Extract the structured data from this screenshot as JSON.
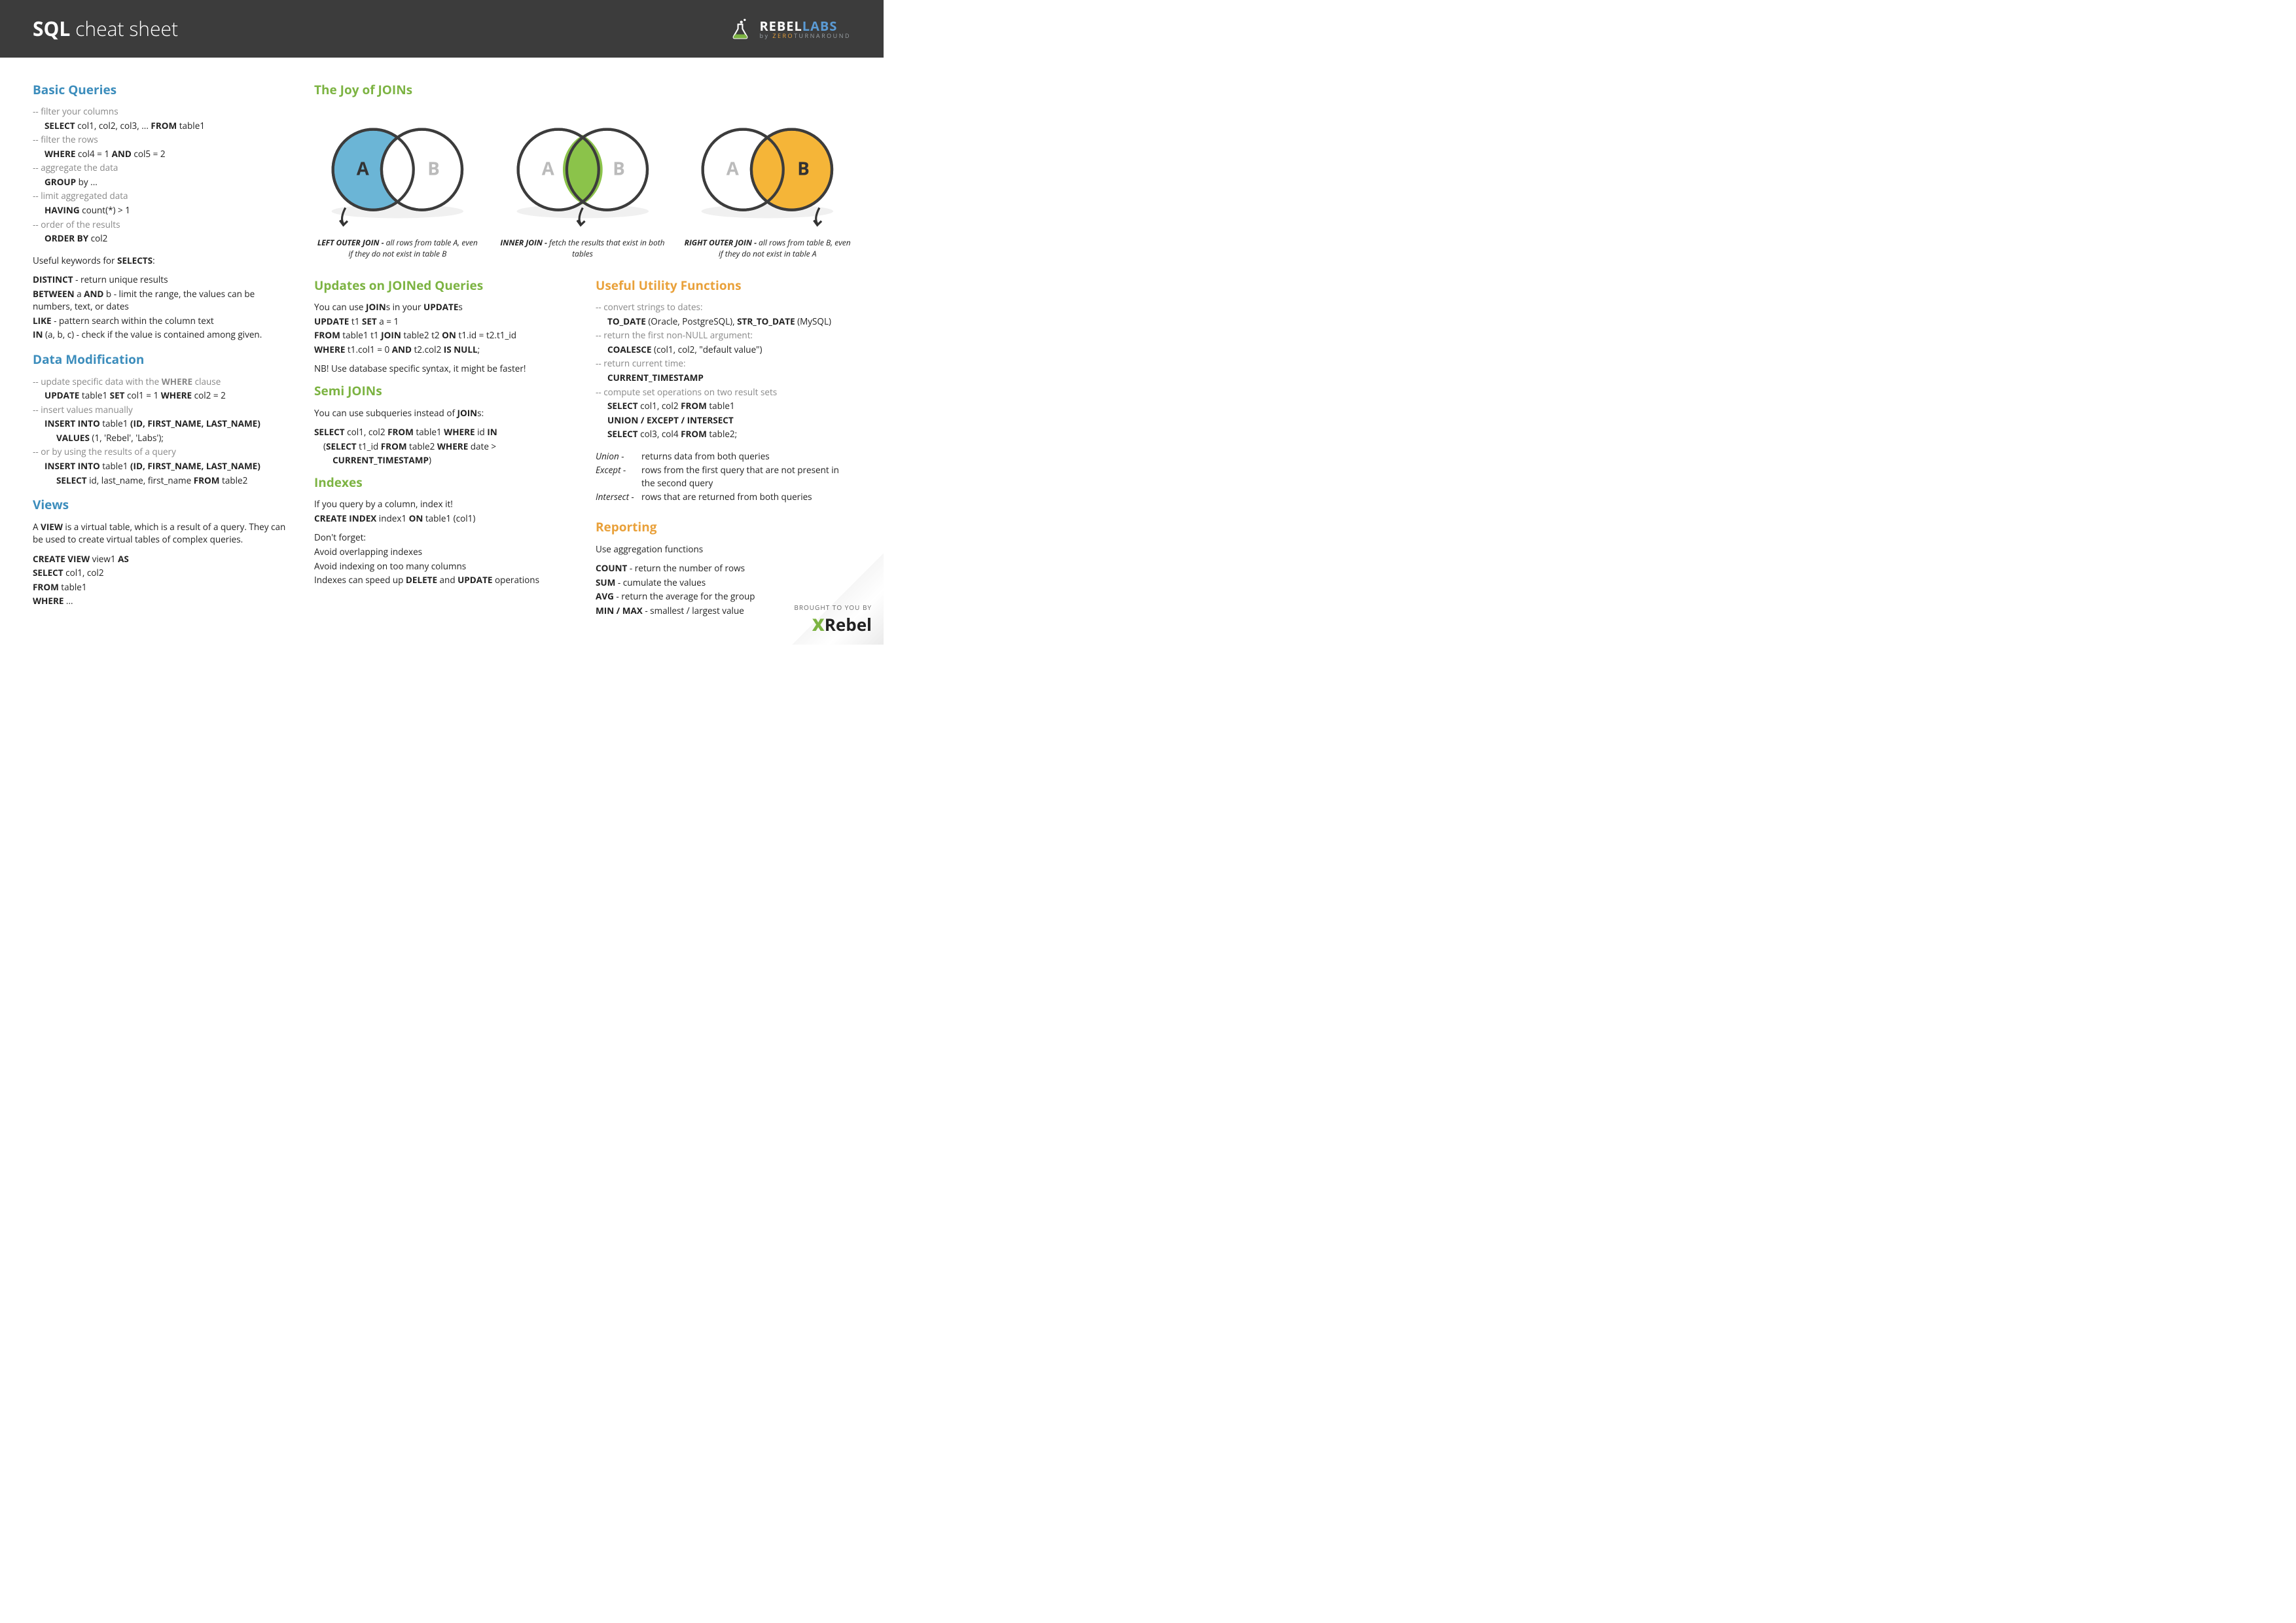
{
  "header": {
    "title_bold": "SQL",
    "title_light": "cheat sheet",
    "logo": {
      "main1": "REBEL",
      "main2": "LABS",
      "sub_pre": "by ",
      "sub_hi": "ZERO",
      "sub_post": "TURNAROUND"
    }
  },
  "colors": {
    "header_bg": "#3c3c3c",
    "blue": "#3c8dbc",
    "green": "#7cb342",
    "orange": "#e9a13b",
    "venn_left": "#6bb5d6",
    "venn_mid": "#8bc34a",
    "venn_right": "#f5b538",
    "venn_stroke": "#3c3c3c"
  },
  "basic": {
    "title": "Basic Queries",
    "items": [
      {
        "c": "--  filter your columns",
        "code": "SELECT col1, col2, col3, ... FROM table1",
        "code_bold": [
          "SELECT",
          "FROM"
        ]
      },
      {
        "c": "--  filter the rows",
        "code": "WHERE col4 = 1 AND col5 = 2",
        "code_bold": [
          "WHERE",
          "AND"
        ]
      },
      {
        "c": "--  aggregate the data",
        "code": "GROUP by ...",
        "code_bold": [
          "GROUP"
        ]
      },
      {
        "c": "--  limit aggregated data",
        "code": "HAVING count(*) > 1",
        "code_bold": [
          "HAVING"
        ]
      },
      {
        "c": "--  order of the results",
        "code": "ORDER BY col2",
        "code_bold": [
          "ORDER BY"
        ]
      }
    ],
    "useful_intro_pre": "Useful keywords for ",
    "useful_intro_bold": "SELECTS",
    "useful_intro_post": ":",
    "keywords": [
      {
        "k": "DISTINCT",
        "t": " - return unique results"
      },
      {
        "k": "BETWEEN",
        "mid": " a ",
        "k2": "AND",
        "t": " b - limit the range, the values can be numbers, text, or dates"
      },
      {
        "k": "LIKE",
        "t": " - pattern search within the column text"
      },
      {
        "k": "IN",
        "t": " (a, b, c) - check if the value is contained among given."
      }
    ]
  },
  "datamod": {
    "title": "Data Modification",
    "lines": [
      {
        "c": "-- update specific data with the ",
        "cb": "WHERE",
        "c2": " clause"
      },
      {
        "ind": 1,
        "parts": [
          [
            "b",
            "UPDATE"
          ],
          [
            "t",
            " table1 "
          ],
          [
            "b",
            "SET"
          ],
          [
            "t",
            " col1 = 1 "
          ],
          [
            "b",
            "WHERE"
          ],
          [
            "t",
            " col2 = 2"
          ]
        ]
      },
      {
        "c": "-- insert values manually"
      },
      {
        "ind": 1,
        "parts": [
          [
            "b",
            "INSERT INTO"
          ],
          [
            "t",
            " table1 "
          ],
          [
            "b",
            "(ID, FIRST_NAME, LAST_NAME)"
          ]
        ]
      },
      {
        "ind": 2,
        "parts": [
          [
            "b",
            "VALUES"
          ],
          [
            "t",
            " (1, 'Rebel', 'Labs');"
          ]
        ]
      },
      {
        "c": "-- or by using the results of a query"
      },
      {
        "ind": 1,
        "parts": [
          [
            "b",
            "INSERT INTO"
          ],
          [
            "t",
            " table1 "
          ],
          [
            "b",
            "(ID, FIRST_NAME, LAST_NAME)"
          ]
        ]
      },
      {
        "ind": 2,
        "parts": [
          [
            "b",
            "SELECT"
          ],
          [
            "t",
            " id, last_name, first_name "
          ],
          [
            "b",
            "FROM"
          ],
          [
            "t",
            " table2"
          ]
        ]
      }
    ]
  },
  "views": {
    "title": "Views",
    "intro_parts": [
      [
        "t",
        "A "
      ],
      [
        "b",
        "VIEW"
      ],
      [
        "t",
        " is a virtual table, which is a result  of a query. They can be used to create virtual tables of complex queries."
      ]
    ],
    "code": [
      [
        [
          "b",
          "CREATE VIEW"
        ],
        [
          "t",
          " view1 "
        ],
        [
          "b",
          "AS"
        ]
      ],
      [
        [
          "b",
          "SELECT"
        ],
        [
          "t",
          " col1, col2"
        ]
      ],
      [
        [
          "b",
          "FROM"
        ],
        [
          "t",
          " table1"
        ]
      ],
      [
        [
          "b",
          "WHERE"
        ],
        [
          "t",
          " ..."
        ]
      ]
    ]
  },
  "joins": {
    "title": "The Joy of JOINs",
    "diagrams": [
      {
        "label_a": "A",
        "label_b": "B",
        "fill": "left",
        "cap_b": "LEFT OUTER JOIN - ",
        "cap": "all rows from table A, even if they do not exist in table B"
      },
      {
        "label_a": "A",
        "label_b": "B",
        "fill": "mid",
        "cap_b": "INNER JOIN - ",
        "cap": "fetch the results that exist in both tables"
      },
      {
        "label_a": "A",
        "label_b": "B",
        "fill": "right",
        "cap_b": "RIGHT OUTER JOIN - ",
        "cap": "all rows from table B, even if they do not exist in table A"
      }
    ]
  },
  "updates": {
    "title": "Updates on JOINed Queries",
    "intro_parts": [
      [
        "t",
        "You can use "
      ],
      [
        "b",
        "JOIN"
      ],
      [
        "t",
        "s in your "
      ],
      [
        "b",
        "UPDATE"
      ],
      [
        "t",
        "s"
      ]
    ],
    "code": [
      [
        [
          "b",
          "UPDATE"
        ],
        [
          "t",
          " t1 "
        ],
        [
          "b",
          "SET"
        ],
        [
          "t",
          " a = 1"
        ]
      ],
      [
        [
          "b",
          "FROM"
        ],
        [
          "t",
          " table1 t1 "
        ],
        [
          "b",
          "JOIN"
        ],
        [
          "t",
          " table2 t2 "
        ],
        [
          "b",
          "ON"
        ],
        [
          "t",
          " t1.id = t2.t1_id"
        ]
      ],
      [
        [
          "b",
          "WHERE"
        ],
        [
          "t",
          " t1.col1 = 0 "
        ],
        [
          "b",
          "AND"
        ],
        [
          "t",
          " t2.col2 "
        ],
        [
          "b",
          "IS NULL"
        ],
        [
          "t",
          ";"
        ]
      ]
    ],
    "note": "NB! Use database specific syntax, it might be faster!"
  },
  "semi": {
    "title": "Semi JOINs",
    "intro_parts": [
      [
        "t",
        "You can use subqueries instead of "
      ],
      [
        "b",
        "JOIN"
      ],
      [
        "t",
        "s:"
      ]
    ],
    "code": [
      [
        [
          "b",
          "SELECT"
        ],
        [
          "t",
          " col1, col2 "
        ],
        [
          "b",
          "FROM"
        ],
        [
          "t",
          " table1 "
        ],
        [
          "b",
          "WHERE"
        ],
        [
          "t",
          " id "
        ],
        [
          "b",
          "IN"
        ]
      ],
      [
        [
          "t",
          "    ("
        ],
        [
          "b",
          "SELECT"
        ],
        [
          "t",
          " t1_id "
        ],
        [
          "b",
          "FROM"
        ],
        [
          "t",
          " table2 "
        ],
        [
          "b",
          "WHERE"
        ],
        [
          "t",
          " date >"
        ]
      ],
      [
        [
          "t",
          "        "
        ],
        [
          "b",
          "CURRENT_TIMESTAMP"
        ],
        [
          "t",
          ")"
        ]
      ]
    ]
  },
  "indexes": {
    "title": "Indexes",
    "intro": "If you query by a column, index it!",
    "code": [
      [
        "b",
        "CREATE INDEX"
      ],
      [
        "t",
        " index1 "
      ],
      [
        "b",
        "ON"
      ],
      [
        "t",
        " table1 (col1)"
      ]
    ],
    "dont_title": "Don't forget:",
    "dont": [
      "Avoid overlapping indexes",
      "Avoid indexing on too many columns"
    ],
    "dont_last_parts": [
      [
        "t",
        "Indexes can speed up "
      ],
      [
        "b",
        "DELETE"
      ],
      [
        "t",
        " and "
      ],
      [
        "b",
        "UPDATE"
      ],
      [
        "t",
        " operations"
      ]
    ]
  },
  "util": {
    "title": "Useful Utility Functions",
    "lines": [
      {
        "c": "-- convert strings to dates:"
      },
      {
        "ind": 1,
        "parts": [
          [
            "b",
            "TO_DATE"
          ],
          [
            "t",
            " (Oracle, PostgreSQL), "
          ],
          [
            "b",
            "STR_TO_DATE"
          ],
          [
            "t",
            " (MySQL)"
          ]
        ]
      },
      {
        "c": "-- return the first non-NULL argument:"
      },
      {
        "ind": 1,
        "parts": [
          [
            "b",
            "COALESCE"
          ],
          [
            "t",
            " (col1, col2, \"default value\")"
          ]
        ]
      },
      {
        "c": "-- return current time:"
      },
      {
        "ind": 1,
        "parts": [
          [
            "b",
            "CURRENT_TIMESTAMP"
          ]
        ]
      },
      {
        "c": "-- compute set operations on two result sets"
      },
      {
        "ind": 1,
        "parts": [
          [
            "b",
            "SELECT"
          ],
          [
            "t",
            " col1, col2 "
          ],
          [
            "b",
            "FROM"
          ],
          [
            "t",
            " table1"
          ]
        ]
      },
      {
        "ind": 1,
        "parts": [
          [
            "b",
            "UNION / EXCEPT / INTERSECT"
          ]
        ]
      },
      {
        "ind": 1,
        "parts": [
          [
            "b",
            "SELECT"
          ],
          [
            "t",
            " col3, col4 "
          ],
          [
            "b",
            "FROM"
          ],
          [
            "t",
            " table2;"
          ]
        ]
      }
    ],
    "defs": [
      {
        "k": "Union -",
        "t": "returns data from both queries"
      },
      {
        "k": "Except -",
        "t": "rows from the first query that are not present in the second query"
      },
      {
        "k": "Intersect -",
        "t": "rows that are returned from both queries"
      }
    ]
  },
  "report": {
    "title": "Reporting",
    "intro": "Use aggregation functions",
    "funcs": [
      {
        "k": "COUNT",
        "t": " - return the number of rows"
      },
      {
        "k": "SUM",
        "t": " - cumulate the values"
      },
      {
        "k": "AVG",
        "t": " - return the average for the group"
      },
      {
        "k": "MIN / MAX",
        "t": " - smallest / largest value"
      }
    ]
  },
  "footer": {
    "tag": "BROUGHT TO YOU BY",
    "x": "X",
    "r": "Rebel"
  }
}
